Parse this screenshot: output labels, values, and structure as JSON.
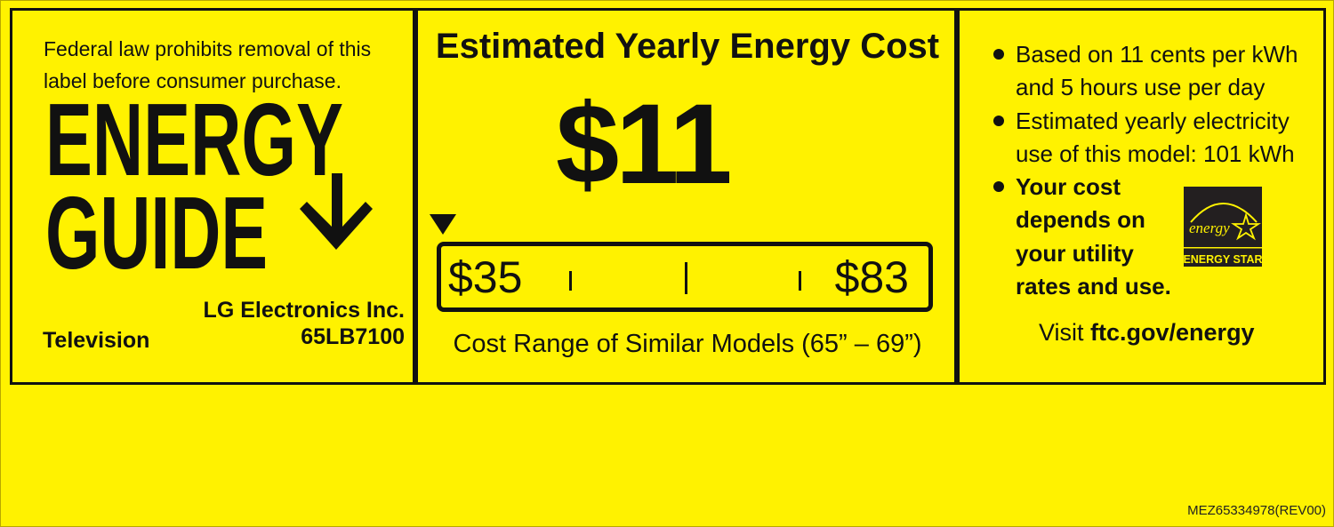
{
  "label": {
    "legal_notice": [
      "Federal law prohibits removal of this",
      "label before consumer purchase."
    ],
    "logo_text": [
      "ENERGY",
      "GUIDE"
    ],
    "product_type": "Television",
    "manufacturer": "LG Electronics Inc.",
    "model": "65LB7100",
    "cost_heading": "Estimated Yearly Energy Cost",
    "yearly_cost": "$11",
    "range_low": "$35",
    "range_high": "$83",
    "range_caption": "Cost Range of Similar Models (65” – 69”)",
    "notes": [
      [
        "Based on 11 cents per kWh",
        "and 5 hours use per day"
      ],
      [
        "Estimated yearly electricity",
        "use of this model: 101 kWh"
      ]
    ],
    "cost_note": [
      "Your cost",
      "depends on",
      "your utility",
      "rates and use."
    ],
    "energy_star_script": "energy",
    "energy_star_label": "ENERGY STAR",
    "visit_prefix": "Visit ",
    "visit_url": "ftc.gov/energy",
    "part_number": "MEZ65334978(REV00)"
  },
  "colors": {
    "background": "#fff200",
    "ink": "#111111"
  }
}
